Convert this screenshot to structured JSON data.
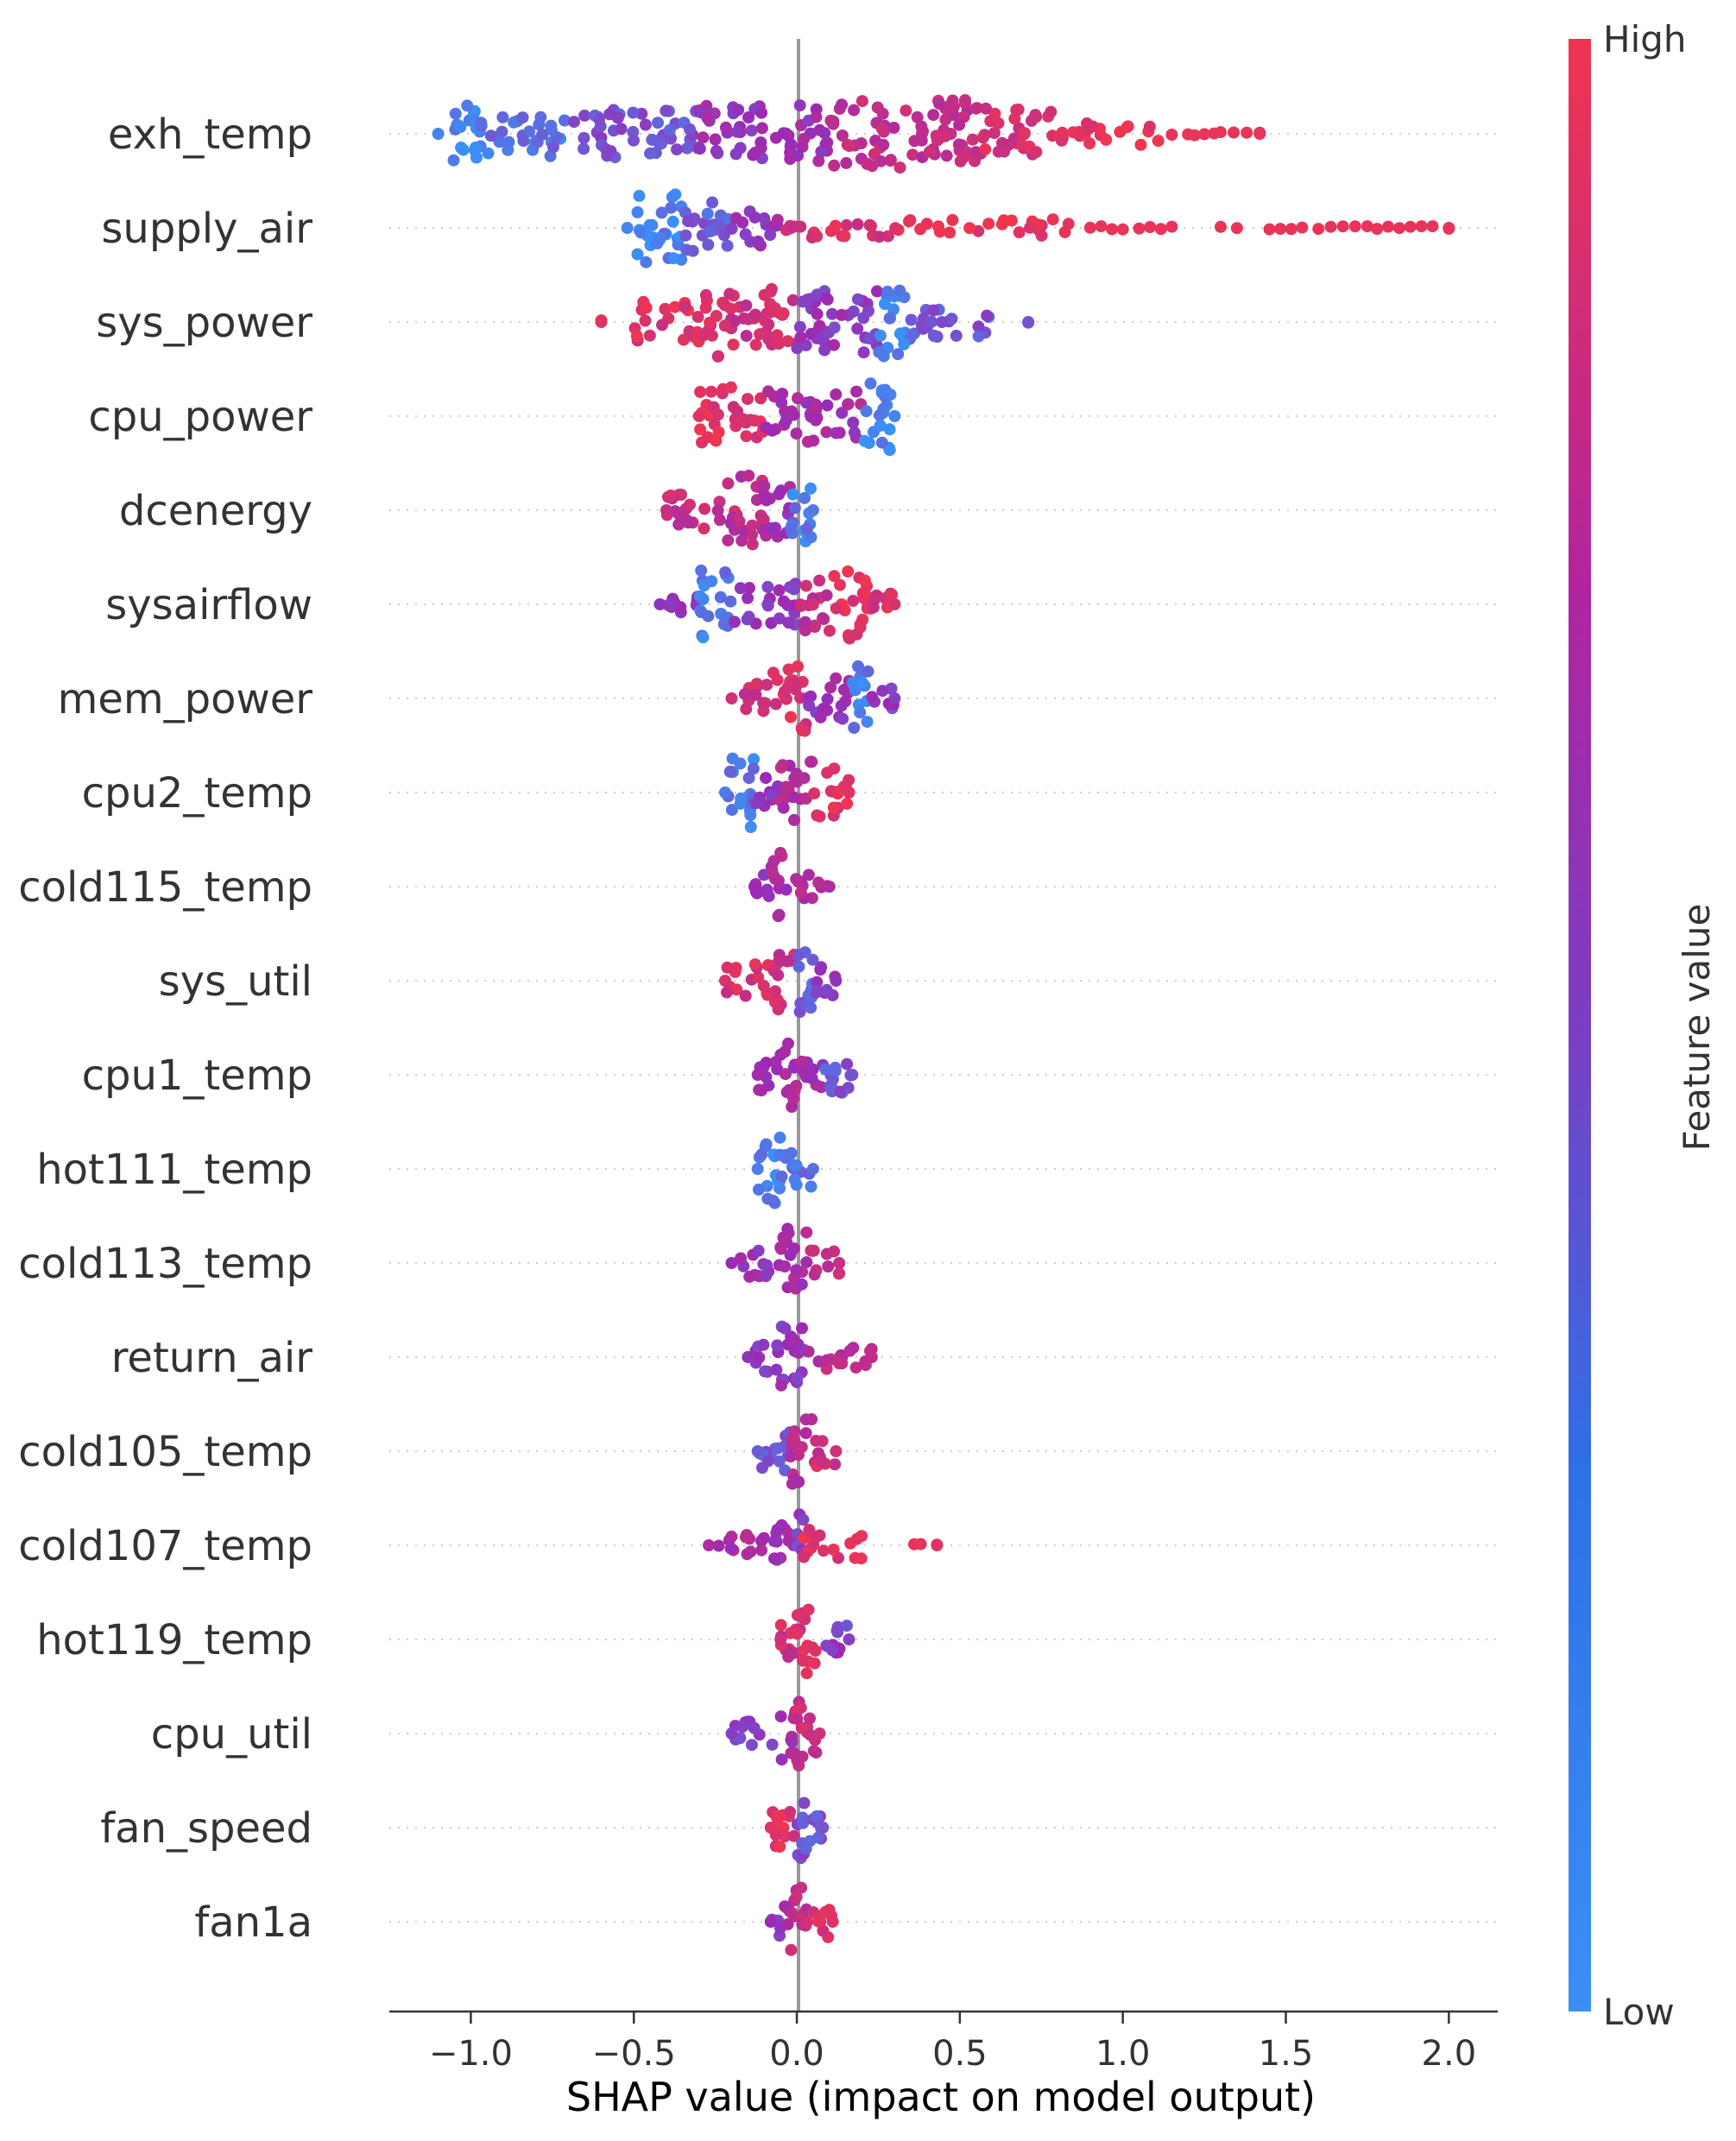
{
  "chart_data": {
    "type": "scatter",
    "subtype": "shap-beeswarm",
    "title": "",
    "xlabel": "SHAP value (impact on model output)",
    "ylabel": "",
    "xlim": [
      -1.25,
      2.15
    ],
    "xticks": [
      -1.0,
      -0.5,
      0.0,
      0.5,
      1.0,
      1.5,
      2.0
    ],
    "xtick_labels": [
      "−1.0",
      "−0.5",
      "0.0",
      "0.5",
      "1.0",
      "1.5",
      "2.0"
    ],
    "colorbar": {
      "label": "Feature value",
      "high": "High",
      "low": "Low",
      "color_low": "#3b8ff5",
      "color_mid": "#9b2ab6",
      "color_high": "#f0354f"
    },
    "zero_line_color": "#999999",
    "features": [
      {
        "name": "exh_temp",
        "min": -1.1,
        "max": 1.42,
        "extra": [
          [
            1.15,
            1.2,
            0.95
          ],
          [
            1.22,
            1.28,
            0.95
          ],
          [
            1.3,
            1.38,
            0.95
          ],
          [
            1.42,
            1.42,
            0.95
          ]
        ],
        "segments": [
          [
            -1.07,
            -0.97,
            0.05,
            1.0
          ],
          [
            -0.97,
            -0.7,
            0.15,
            0.65
          ],
          [
            -0.7,
            -0.3,
            0.3,
            0.7
          ],
          [
            -0.3,
            0.1,
            0.5,
            0.85
          ],
          [
            0.1,
            0.55,
            0.7,
            1.0
          ],
          [
            0.55,
            0.8,
            0.85,
            0.75
          ],
          [
            0.8,
            1.13,
            0.95,
            0.35
          ]
        ]
      },
      {
        "name": "supply_air",
        "min": -0.52,
        "max": 2.0,
        "extra": [
          [
            0.9,
            1.0,
            0.95
          ],
          [
            1.05,
            1.15,
            0.95
          ],
          [
            1.3,
            1.35,
            0.95
          ],
          [
            1.45,
            1.55,
            0.95
          ],
          [
            1.6,
            1.75,
            0.95
          ],
          [
            1.78,
            1.95,
            0.95
          ],
          [
            2.0,
            2.0,
            0.95
          ]
        ],
        "segments": [
          [
            -0.5,
            -0.35,
            0.05,
            1.0
          ],
          [
            -0.35,
            -0.2,
            0.25,
            0.75
          ],
          [
            -0.2,
            -0.05,
            0.5,
            0.55
          ],
          [
            -0.05,
            0.3,
            0.85,
            0.3
          ],
          [
            0.3,
            0.85,
            0.95,
            0.25
          ]
        ]
      },
      {
        "name": "sys_power",
        "min": -0.6,
        "max": 0.71,
        "extra": [
          [
            -0.6,
            -0.6,
            0.95
          ],
          [
            0.71,
            0.71,
            0.35
          ]
        ],
        "segments": [
          [
            -0.5,
            -0.3,
            0.9,
            0.6
          ],
          [
            -0.3,
            0.0,
            0.8,
            1.0
          ],
          [
            0.0,
            0.25,
            0.45,
            0.9
          ],
          [
            0.25,
            0.35,
            0.05,
            1.0
          ],
          [
            0.35,
            0.6,
            0.3,
            0.45
          ]
        ]
      },
      {
        "name": "cpu_power",
        "min": -0.3,
        "max": 0.3,
        "extra": [],
        "segments": [
          [
            -0.3,
            -0.1,
            0.9,
            0.85
          ],
          [
            -0.1,
            0.2,
            0.55,
            0.75
          ],
          [
            0.2,
            0.3,
            0.05,
            1.0
          ]
        ]
      },
      {
        "name": "dcenergy",
        "min": -0.4,
        "max": 0.05,
        "extra": [],
        "segments": [
          [
            -0.4,
            -0.25,
            0.75,
            0.55
          ],
          [
            -0.25,
            -0.1,
            0.7,
            1.0
          ],
          [
            -0.1,
            -0.02,
            0.55,
            0.8
          ],
          [
            -0.02,
            0.05,
            0.1,
            0.9
          ]
        ]
      },
      {
        "name": "sysairflow",
        "min": -0.42,
        "max": 0.3,
        "extra": [],
        "segments": [
          [
            -0.42,
            -0.3,
            0.45,
            0.3
          ],
          [
            -0.3,
            -0.2,
            0.1,
            1.0
          ],
          [
            -0.2,
            0.0,
            0.45,
            0.6
          ],
          [
            0.0,
            0.1,
            0.7,
            0.8
          ],
          [
            0.1,
            0.22,
            0.9,
            1.0
          ],
          [
            0.22,
            0.3,
            0.85,
            0.35
          ]
        ]
      },
      {
        "name": "mem_power",
        "min": -0.2,
        "max": 0.3,
        "extra": [],
        "segments": [
          [
            -0.2,
            -0.08,
            0.8,
            0.45
          ],
          [
            -0.08,
            0.03,
            0.85,
            1.0
          ],
          [
            0.03,
            0.17,
            0.5,
            0.6
          ],
          [
            0.17,
            0.22,
            0.1,
            1.0
          ],
          [
            0.22,
            0.3,
            0.4,
            0.3
          ]
        ]
      },
      {
        "name": "cpu2_temp",
        "min": -0.22,
        "max": 0.16,
        "extra": [],
        "segments": [
          [
            -0.22,
            -0.13,
            0.1,
            1.0
          ],
          [
            -0.13,
            -0.05,
            0.45,
            0.55
          ],
          [
            -0.05,
            0.05,
            0.65,
            0.9
          ],
          [
            0.05,
            0.16,
            0.9,
            0.7
          ]
        ]
      },
      {
        "name": "cold115_temp",
        "min": -0.13,
        "max": 0.1,
        "extra": [],
        "segments": [
          [
            -0.13,
            -0.08,
            0.5,
            0.4
          ],
          [
            -0.08,
            -0.03,
            0.6,
            1.0
          ],
          [
            -0.03,
            0.1,
            0.6,
            0.35
          ]
        ]
      },
      {
        "name": "sys_util",
        "min": -0.22,
        "max": 0.12,
        "extra": [],
        "segments": [
          [
            -0.22,
            -0.08,
            0.85,
            0.5
          ],
          [
            -0.08,
            0.0,
            0.8,
            0.85
          ],
          [
            0.0,
            0.05,
            0.25,
            1.0
          ],
          [
            0.05,
            0.12,
            0.45,
            0.45
          ]
        ]
      },
      {
        "name": "cpu1_temp",
        "min": -0.12,
        "max": 0.17,
        "extra": [],
        "segments": [
          [
            -0.12,
            -0.05,
            0.55,
            0.5
          ],
          [
            -0.05,
            0.0,
            0.6,
            1.0
          ],
          [
            0.0,
            0.08,
            0.55,
            0.45
          ],
          [
            0.08,
            0.17,
            0.3,
            0.6
          ]
        ]
      },
      {
        "name": "hot111_temp",
        "min": -0.12,
        "max": 0.05,
        "extra": [],
        "segments": [
          [
            -0.12,
            -0.02,
            0.08,
            1.0
          ],
          [
            -0.02,
            0.05,
            0.15,
            0.55
          ]
        ]
      },
      {
        "name": "cold113_temp",
        "min": -0.2,
        "max": 0.13,
        "extra": [],
        "segments": [
          [
            -0.2,
            -0.05,
            0.5,
            0.4
          ],
          [
            -0.05,
            0.03,
            0.55,
            1.0
          ],
          [
            0.03,
            0.13,
            0.75,
            0.4
          ]
        ]
      },
      {
        "name": "return_air",
        "min": -0.15,
        "max": 0.23,
        "extra": [],
        "segments": [
          [
            -0.15,
            -0.05,
            0.45,
            0.45
          ],
          [
            -0.05,
            0.03,
            0.45,
            1.0
          ],
          [
            0.03,
            0.23,
            0.7,
            0.4
          ]
        ]
      },
      {
        "name": "cold105_temp",
        "min": -0.12,
        "max": 0.12,
        "extra": [],
        "segments": [
          [
            -0.12,
            -0.02,
            0.25,
            0.6
          ],
          [
            -0.02,
            0.05,
            0.65,
            1.0
          ],
          [
            0.05,
            0.12,
            0.8,
            0.45
          ]
        ]
      },
      {
        "name": "cold107_temp",
        "min": -0.27,
        "max": 0.43,
        "extra": [
          [
            0.36,
            0.38,
            0.95
          ],
          [
            0.43,
            0.43,
            0.95
          ]
        ],
        "segments": [
          [
            -0.27,
            -0.08,
            0.6,
            0.3
          ],
          [
            -0.08,
            0.0,
            0.55,
            0.6
          ],
          [
            0.0,
            0.02,
            0.4,
            1.0
          ],
          [
            0.02,
            0.2,
            0.9,
            0.45
          ]
        ]
      },
      {
        "name": "hot119_temp",
        "min": -0.05,
        "max": 0.16,
        "extra": [],
        "segments": [
          [
            -0.05,
            0.0,
            0.8,
            0.6
          ],
          [
            0.0,
            0.06,
            0.85,
            1.0
          ],
          [
            0.06,
            0.16,
            0.4,
            0.45
          ]
        ]
      },
      {
        "name": "cpu_util",
        "min": -0.2,
        "max": 0.07,
        "extra": [],
        "segments": [
          [
            -0.2,
            -0.05,
            0.4,
            0.35
          ],
          [
            -0.05,
            0.0,
            0.55,
            0.8
          ],
          [
            0.0,
            0.03,
            0.75,
            1.0
          ],
          [
            0.03,
            0.07,
            0.8,
            0.55
          ]
        ]
      },
      {
        "name": "fan_speed",
        "min": -0.08,
        "max": 0.08,
        "extra": [],
        "segments": [
          [
            -0.08,
            0.0,
            0.9,
            0.6
          ],
          [
            0.0,
            0.03,
            0.3,
            1.0
          ],
          [
            0.03,
            0.08,
            0.3,
            0.5
          ]
        ]
      },
      {
        "name": "fan1a",
        "min": -0.08,
        "max": 0.11,
        "extra": [],
        "segments": [
          [
            -0.08,
            -0.02,
            0.5,
            0.45
          ],
          [
            -0.02,
            0.03,
            0.7,
            1.0
          ],
          [
            0.03,
            0.11,
            0.9,
            0.45
          ]
        ]
      }
    ]
  }
}
